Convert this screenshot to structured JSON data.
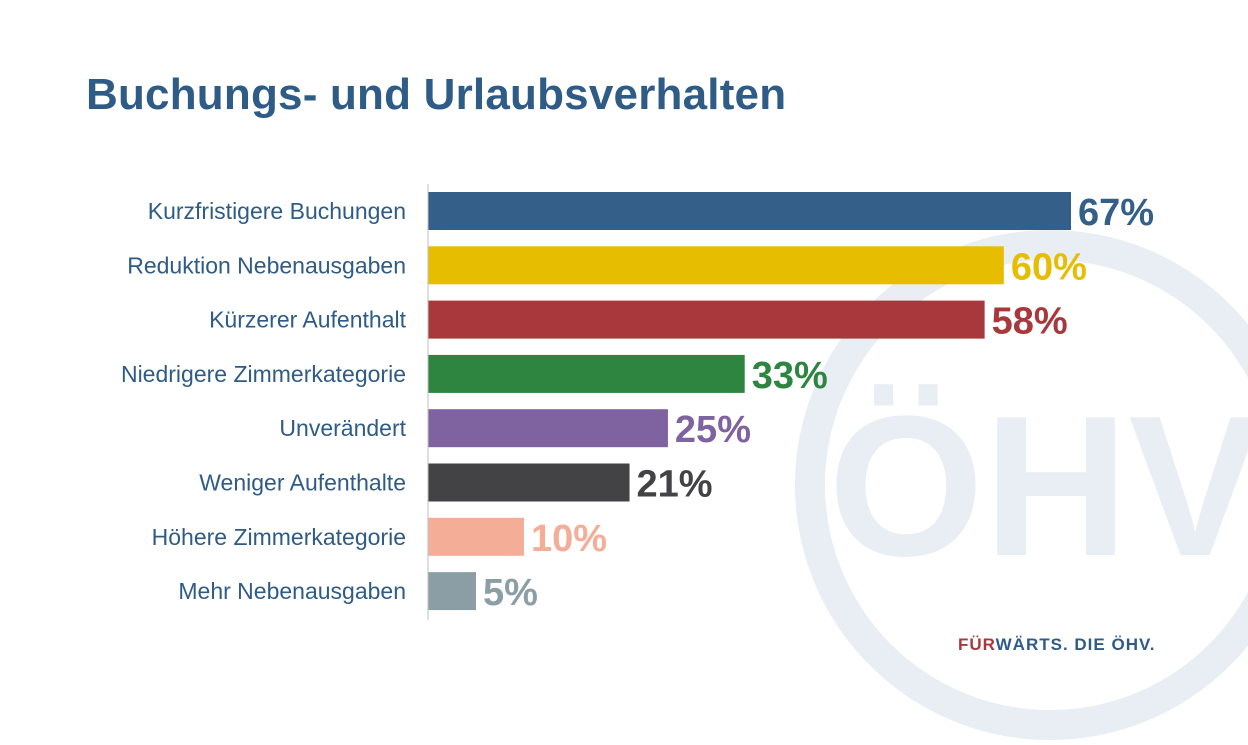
{
  "chart_data": {
    "type": "bar",
    "orientation": "horizontal",
    "title": "Buchungs- und Urlaubsverhalten",
    "categories": [
      "Kurzfristigere Buchungen",
      "Reduktion Nebenausgaben",
      "Kürzerer Aufenthalt",
      "Niedrigere Zimmerkategorie",
      "Unverändert",
      "Weniger Aufenthalte",
      "Höhere Zimmerkategorie",
      "Mehr Nebenausgaben"
    ],
    "values": [
      67,
      60,
      58,
      33,
      25,
      21,
      10,
      5
    ],
    "value_labels": [
      "67%",
      "60%",
      "58%",
      "33%",
      "25%",
      "21%",
      "10%",
      "5%"
    ],
    "colors": [
      "#335f89",
      "#e6bd00",
      "#a8383b",
      "#2e8540",
      "#7f63a1",
      "#434345",
      "#f4ad96",
      "#8b9ea6"
    ],
    "xlim": [
      0,
      67
    ],
    "grid": false,
    "legend": "none"
  },
  "footer": {
    "brand_part1": "FÜR",
    "brand_part2": "WÄRTS. DIE ÖHV."
  },
  "watermark": {
    "text": "ÖHV"
  }
}
